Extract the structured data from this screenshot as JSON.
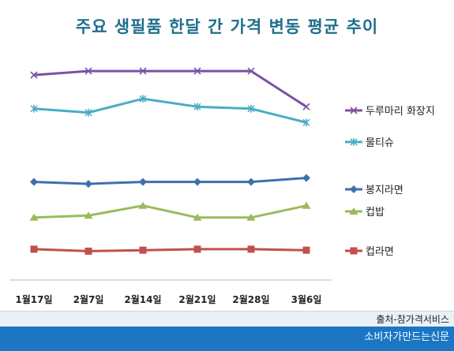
{
  "chart_data": {
    "type": "line",
    "title": "주요 생필품 한달 간 가격 변동 평균 추이",
    "categories": [
      "1월17일",
      "2월7일",
      "2월14일",
      "2월21일",
      "2월28일",
      "3월6일"
    ],
    "legend_position": "right",
    "grid": false,
    "series": [
      {
        "name": "두루마리 화장지",
        "color": "#7b52a3",
        "marker": "x",
        "values": [
          96,
          98,
          98,
          98,
          98,
          80
        ]
      },
      {
        "name": "물티슈",
        "color": "#4bacc6",
        "marker": "asterisk",
        "values": [
          79,
          77,
          84,
          80,
          79,
          72
        ]
      },
      {
        "name": "봉지라면",
        "color": "#3f6fb0",
        "marker": "diamond",
        "values": [
          42,
          41,
          42,
          42,
          42,
          44
        ]
      },
      {
        "name": "컵밥",
        "color": "#9bbb59",
        "marker": "triangle",
        "values": [
          24,
          25,
          30,
          24,
          24,
          30
        ]
      },
      {
        "name": "컵라면",
        "color": "#c0504d",
        "marker": "square",
        "values": [
          8,
          7,
          7.5,
          8,
          8,
          7.5
        ]
      }
    ],
    "ylim": [
      0,
      110
    ]
  },
  "footer": {
    "source": "출처-참가격서비스",
    "publisher": "소비자가만드는신문"
  }
}
